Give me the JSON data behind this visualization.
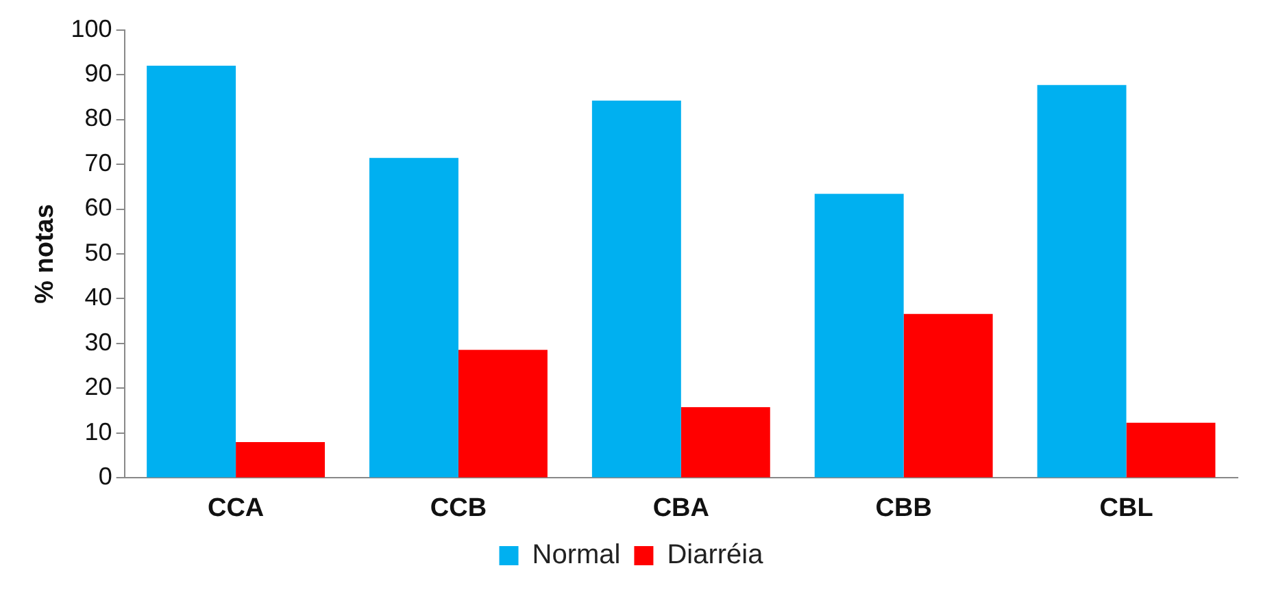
{
  "chart_data": {
    "type": "bar",
    "ylabel": "% notas",
    "categories": [
      "CCA",
      "CCB",
      "CBA",
      "CBB",
      "CBL"
    ],
    "series": [
      {
        "name": "Normal",
        "color": "#00b0f0",
        "values": [
          92,
          71.4,
          84.2,
          63.4,
          87.7
        ]
      },
      {
        "name": "Diarréia",
        "color": "#ff0000",
        "values": [
          8,
          28.6,
          15.8,
          36.6,
          12.3
        ]
      }
    ],
    "ylim": [
      0,
      100
    ],
    "yticks": [
      0,
      10,
      20,
      30,
      40,
      50,
      60,
      70,
      80,
      90,
      100
    ],
    "grid": false,
    "legend": "bottom"
  }
}
